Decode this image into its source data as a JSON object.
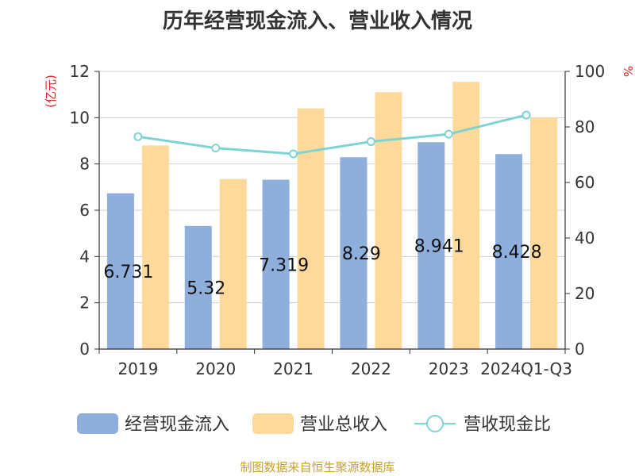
{
  "chart_data": {
    "type": "bar",
    "title": "历年经营现金流入、营业收入情况",
    "categories": [
      "2019",
      "2020",
      "2021",
      "2022",
      "2023",
      "2024Q1-Q3"
    ],
    "series": [
      {
        "name": "经营现金流入",
        "type": "bar",
        "axis": "left",
        "color": "#8eaedb",
        "values": [
          6.731,
          5.32,
          7.319,
          8.29,
          8.941,
          8.428
        ],
        "data_labels": [
          "6.731",
          "5.32",
          "7.319",
          "8.29",
          "8.941",
          "8.428"
        ]
      },
      {
        "name": "营业总收入",
        "type": "bar",
        "axis": "left",
        "color": "#fdd99b",
        "values": [
          8.8,
          7.35,
          10.4,
          11.1,
          11.55,
          10.0
        ]
      },
      {
        "name": "营收现金比",
        "type": "line",
        "axis": "right",
        "color": "#7fd3d3",
        "values": [
          76.5,
          72.4,
          70.3,
          74.7,
          77.4,
          84.3
        ]
      }
    ],
    "y_left": {
      "label": "(亿元)",
      "lim": [
        0,
        12
      ],
      "ticks": [
        "0",
        "2",
        "4",
        "6",
        "8",
        "10",
        "12"
      ]
    },
    "y_right": {
      "label": "%",
      "lim": [
        0,
        100
      ],
      "ticks": [
        "0",
        "20",
        "40",
        "60",
        "80",
        "100"
      ]
    },
    "grid": true,
    "legend": "bottom"
  },
  "source": "制图数据来自恒生聚源数据库"
}
